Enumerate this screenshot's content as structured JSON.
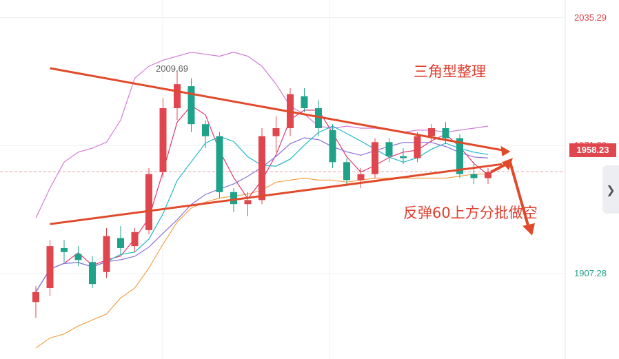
{
  "chart_data": {
    "type": "candlestick",
    "title": "",
    "y_axis": {
      "ylim": [
        1870,
        2040
      ],
      "tick_labels": [
        "2035.29",
        "1971.29",
        "1907.28"
      ]
    },
    "last_price": "1958.23",
    "high_label": "2009.69",
    "annotations": {
      "pattern": "三角型整理",
      "strategy": "反弹60上方分批做空"
    },
    "trendlines": [
      {
        "name": "upper",
        "points": [
          [
            1,
            2010
          ],
          [
            33,
            1969
          ]
        ]
      },
      {
        "name": "lower",
        "points": [
          [
            1,
            1932
          ],
          [
            33,
            1962
          ]
        ]
      }
    ],
    "bollinger_upper": [
      1935,
      1950,
      1963,
      1968,
      1970,
      1973,
      1984,
      2005,
      2011,
      2014,
      2016,
      2018,
      2017,
      2016,
      2018,
      2016,
      2011,
      2002,
      1991,
      1987,
      1981,
      1980,
      1981,
      1980,
      1980,
      1979,
      1978,
      1979,
      1979,
      1978,
      1979,
      1980,
      1981
    ],
    "bollinger_lower": [
      1870,
      1875,
      1877,
      1881,
      1884,
      1887,
      1895,
      1900,
      1910,
      1922,
      1933,
      1940,
      1943,
      1945,
      1946,
      1947,
      1949,
      1953,
      1954,
      1955,
      1954,
      1954,
      1953,
      1954,
      1955,
      1955,
      1955,
      1955,
      1955,
      1955,
      1956,
      1957,
      1957
    ],
    "candles": [
      {
        "o": 1893,
        "h": 1901,
        "l": 1885,
        "c": 1898
      },
      {
        "o": 1900,
        "h": 1924,
        "l": 1896,
        "c": 1921
      },
      {
        "o": 1920,
        "h": 1924,
        "l": 1913,
        "c": 1918
      },
      {
        "o": 1917,
        "h": 1921,
        "l": 1911,
        "c": 1914
      },
      {
        "o": 1913,
        "h": 1916,
        "l": 1900,
        "c": 1902
      },
      {
        "o": 1908,
        "h": 1930,
        "l": 1905,
        "c": 1926
      },
      {
        "o": 1925,
        "h": 1931,
        "l": 1917,
        "c": 1920
      },
      {
        "o": 1921,
        "h": 1930,
        "l": 1918,
        "c": 1928
      },
      {
        "o": 1929,
        "h": 1960,
        "l": 1927,
        "c": 1957
      },
      {
        "o": 1958,
        "h": 1995,
        "l": 1955,
        "c": 1990
      },
      {
        "o": 1990,
        "h": 2009,
        "l": 1984,
        "c": 2002
      },
      {
        "o": 2001,
        "h": 2005,
        "l": 1978,
        "c": 1982
      },
      {
        "o": 1982,
        "h": 1984,
        "l": 1970,
        "c": 1976
      },
      {
        "o": 1976,
        "h": 1978,
        "l": 1945,
        "c": 1948
      },
      {
        "o": 1948,
        "h": 1950,
        "l": 1938,
        "c": 1942
      },
      {
        "o": 1942,
        "h": 1948,
        "l": 1936,
        "c": 1944
      },
      {
        "o": 1944,
        "h": 1980,
        "l": 1942,
        "c": 1976
      },
      {
        "o": 1976,
        "h": 1986,
        "l": 1968,
        "c": 1980
      },
      {
        "o": 1980,
        "h": 2000,
        "l": 1976,
        "c": 1997
      },
      {
        "o": 1996,
        "h": 2000,
        "l": 1988,
        "c": 1990
      },
      {
        "o": 1990,
        "h": 1994,
        "l": 1976,
        "c": 1980
      },
      {
        "o": 1979,
        "h": 1982,
        "l": 1960,
        "c": 1963
      },
      {
        "o": 1963,
        "h": 1965,
        "l": 1951,
        "c": 1954
      },
      {
        "o": 1954,
        "h": 1960,
        "l": 1950,
        "c": 1957
      },
      {
        "o": 1957,
        "h": 1975,
        "l": 1955,
        "c": 1973
      },
      {
        "o": 1973,
        "h": 1975,
        "l": 1963,
        "c": 1966
      },
      {
        "o": 1966,
        "h": 1970,
        "l": 1962,
        "c": 1965
      },
      {
        "o": 1965,
        "h": 1978,
        "l": 1963,
        "c": 1976
      },
      {
        "o": 1976,
        "h": 1982,
        "l": 1973,
        "c": 1980
      },
      {
        "o": 1980,
        "h": 1983,
        "l": 1972,
        "c": 1975
      },
      {
        "o": 1975,
        "h": 1977,
        "l": 1955,
        "c": 1957
      },
      {
        "o": 1957,
        "h": 1963,
        "l": 1952,
        "c": 1955
      },
      {
        "o": 1955,
        "h": 1960,
        "l": 1952,
        "c": 1958
      }
    ],
    "colors": {
      "up": "#e0464e",
      "down": "#1fa28a",
      "ma_fast": "#e0366e",
      "ma_mid": "#22b8c8",
      "ma_slow": "#8a6fd8",
      "boll_upper": "#d27ad8",
      "boll_lower": "#f2a24a",
      "trendline": "#e04a2a",
      "axis_up": "#e0464e",
      "axis_down": "#1fa28a"
    }
  },
  "ui": {
    "side_panel_icon": "chevron-right-icon"
  }
}
